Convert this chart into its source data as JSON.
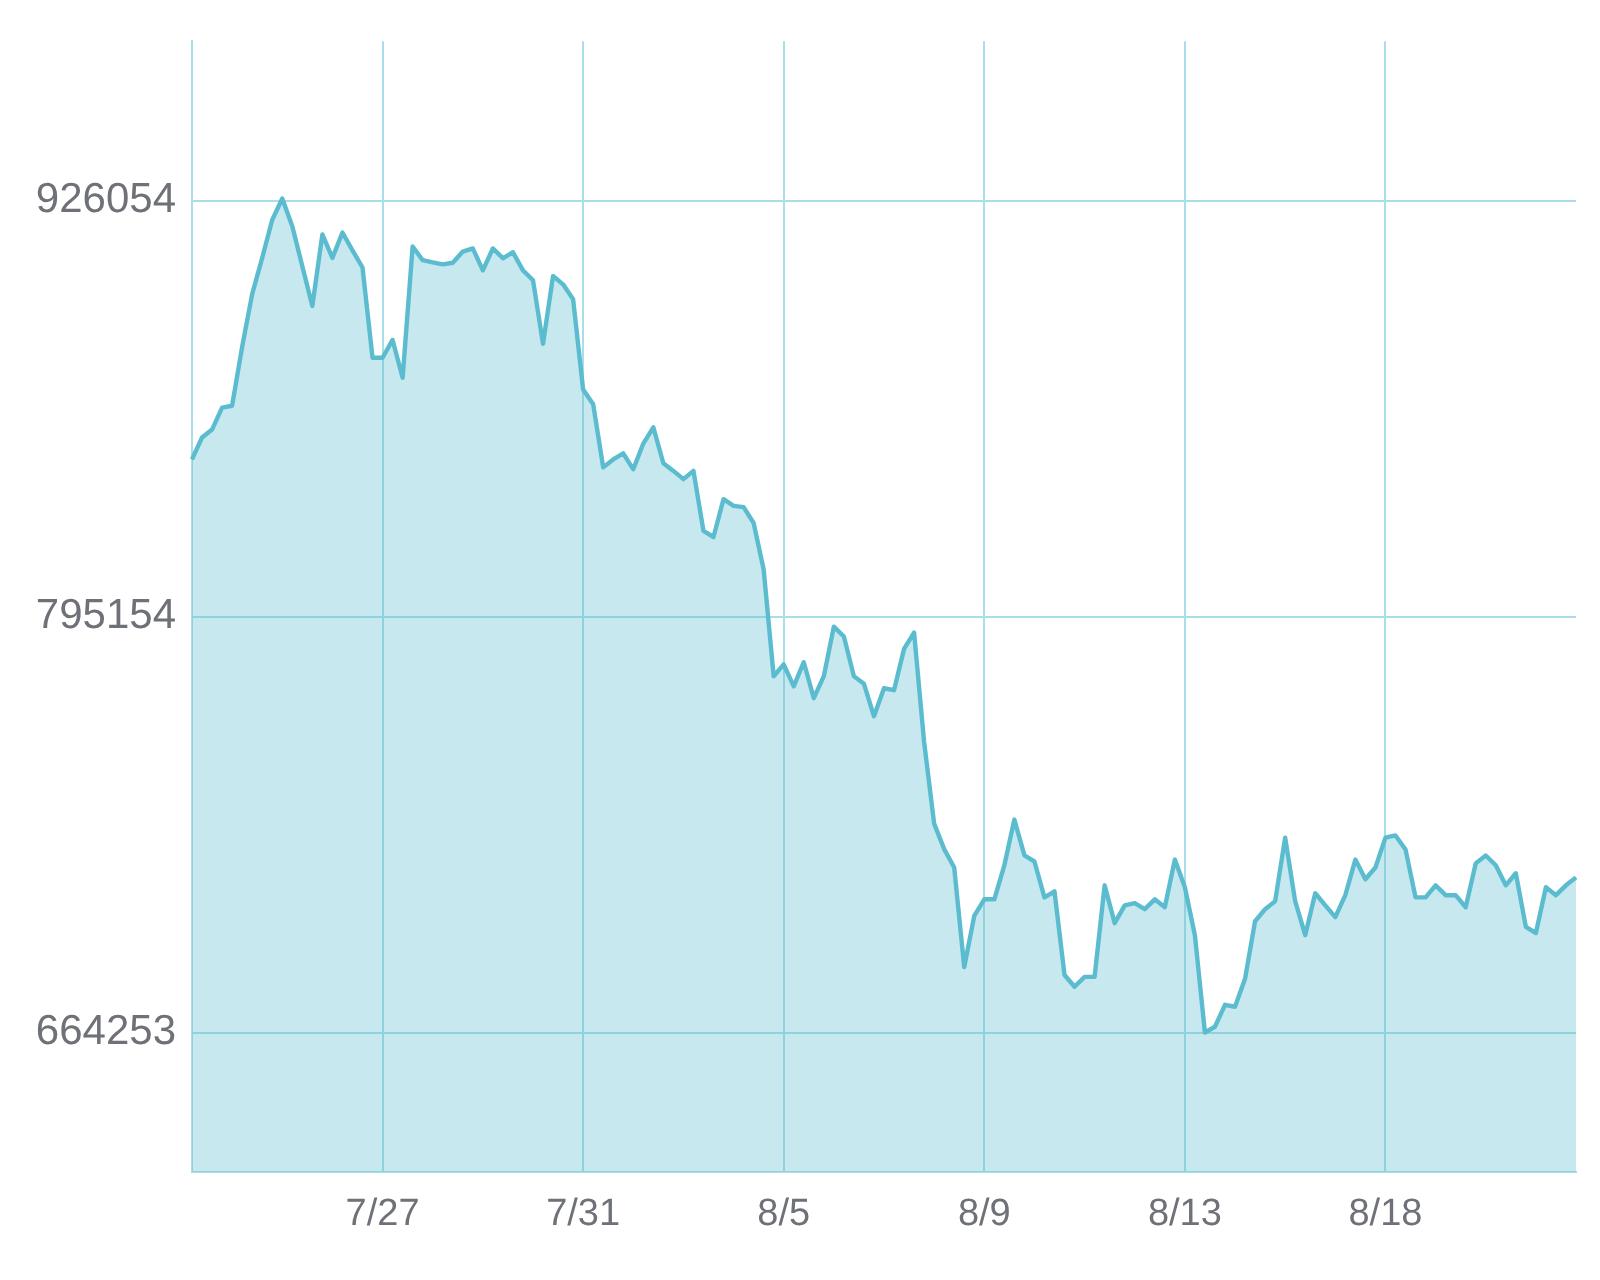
{
  "chart_data": {
    "type": "area",
    "marker": "none",
    "grid": true,
    "legend": false,
    "categories": [
      null,
      null,
      null,
      null,
      null,
      null,
      null,
      null,
      null,
      null,
      null,
      null,
      null,
      null,
      null,
      null,
      null,
      null,
      null,
      "7/27",
      null,
      null,
      null,
      null,
      null,
      null,
      null,
      null,
      null,
      null,
      null,
      null,
      null,
      null,
      null,
      null,
      null,
      null,
      null,
      "7/31",
      null,
      null,
      null,
      null,
      null,
      null,
      null,
      null,
      null,
      null,
      null,
      null,
      null,
      null,
      null,
      null,
      null,
      null,
      null,
      "8/5",
      null,
      null,
      null,
      null,
      null,
      null,
      null,
      null,
      null,
      null,
      null,
      null,
      null,
      null,
      null,
      null,
      null,
      null,
      null,
      "8/9",
      null,
      null,
      null,
      null,
      null,
      null,
      null,
      null,
      null,
      null,
      null,
      null,
      null,
      null,
      null,
      null,
      null,
      null,
      null,
      "8/13",
      null,
      null,
      null,
      null,
      null,
      null,
      null,
      null,
      null,
      null,
      null,
      null,
      null,
      null,
      null,
      null,
      null,
      null,
      null,
      "8/18",
      null,
      null,
      null,
      null,
      null,
      null,
      null,
      null,
      null,
      null,
      null,
      null,
      null,
      null,
      null,
      null,
      null,
      null,
      null
    ],
    "series": [
      {
        "color": "#5bbccf",
        "values": [
          844600,
          851500,
          854000,
          860900,
          861500,
          880000,
          896600,
          908000,
          920000,
          926700,
          918000,
          905400,
          892900,
          915400,
          908000,
          916000,
          910400,
          905000,
          876600,
          876600,
          882200,
          870300,
          911600,
          907300,
          906600,
          906000,
          906500,
          910000,
          911000,
          904100,
          911000,
          907900,
          909800,
          904100,
          901000,
          881000,
          902300,
          899700,
          895000,
          866600,
          862000,
          842100,
          844600,
          846500,
          841500,
          849600,
          854700,
          843400,
          841000,
          838400,
          841000,
          822100,
          820200,
          832100,
          830000,
          829600,
          824600,
          810000,
          776400,
          780100,
          773200,
          780800,
          769500,
          776400,
          792000,
          788900,
          776400,
          774000,
          763800,
          772600,
          772000,
          785000,
          790100,
          755700,
          730000,
          722000,
          716200,
          684900,
          701000,
          706200,
          706200,
          716900,
          731300,
          720000,
          718100,
          706800,
          708700,
          682400,
          678700,
          681800,
          681800,
          710600,
          698700,
          704300,
          705000,
          703100,
          706200,
          703700,
          718700,
          710000,
          694900,
          664300,
          666100,
          673000,
          672400,
          681200,
          699300,
          703100,
          705600,
          725600,
          705600,
          694900,
          708100,
          704300,
          700600,
          707500,
          718700,
          712500,
          716200,
          725600,
          726300,
          721900,
          706800,
          706800,
          710600,
          707500,
          707500,
          703700,
          717500,
          720000,
          716900,
          710600,
          714400,
          697500,
          695600,
          710000,
          707500,
          710600,
          713100
        ]
      }
    ],
    "ylim": [
      620400,
      976200
    ],
    "yticks": [
      664253,
      795154,
      926054
    ]
  }
}
